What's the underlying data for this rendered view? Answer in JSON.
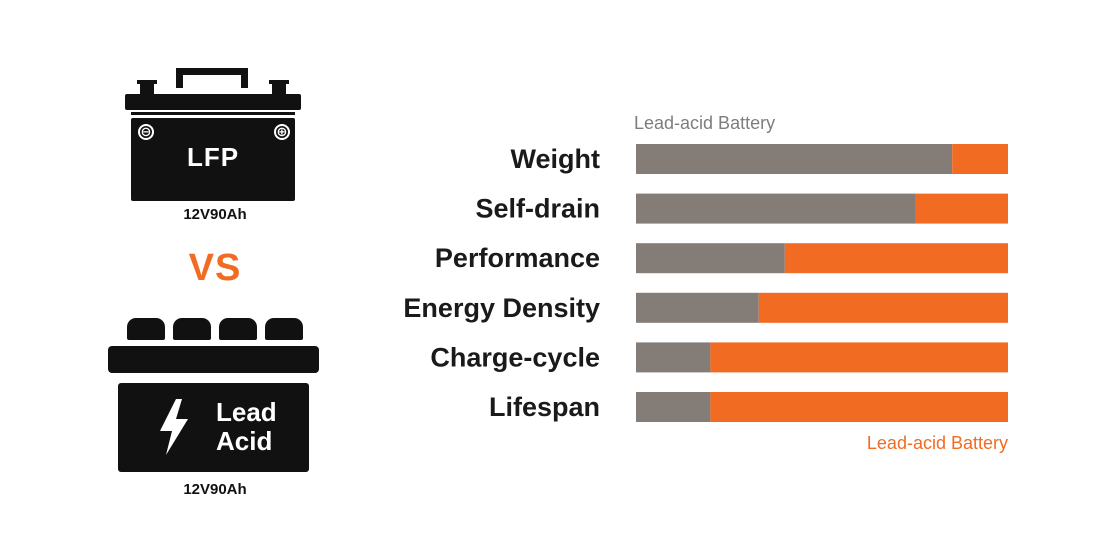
{
  "batteries": {
    "top": {
      "label": "LFP",
      "caption": "12V90Ah",
      "minus": "⊖",
      "plus": "⊕"
    },
    "vs": "VS",
    "bottom": {
      "label_line1": "Lead",
      "label_line2": "Acid",
      "caption": "12V90Ah"
    }
  },
  "colors": {
    "gray": "#847d77",
    "orange": "#f26b23",
    "top_legend": "#7d7d7d"
  },
  "chart_data": {
    "type": "bar",
    "orientation": "horizontal",
    "stacked": true,
    "normalized": true,
    "categories": [
      "Weight",
      "Self-drain",
      "Performance",
      "Energy Density",
      "Charge-cycle",
      "Lifespan"
    ],
    "series": [
      {
        "name": "Lead-acid Battery",
        "color": "#847d77",
        "values": [
          0.85,
          0.75,
          0.4,
          0.33,
          0.2,
          0.2
        ]
      },
      {
        "name": "Lead-acid Battery",
        "color": "#f26b23",
        "values": [
          0.15,
          0.25,
          0.6,
          0.67,
          0.8,
          0.8
        ]
      }
    ],
    "legend_top": "Lead-acid Battery",
    "legend_bottom": "Lead-acid Battery",
    "xlim": [
      0,
      1
    ],
    "grid": false
  }
}
